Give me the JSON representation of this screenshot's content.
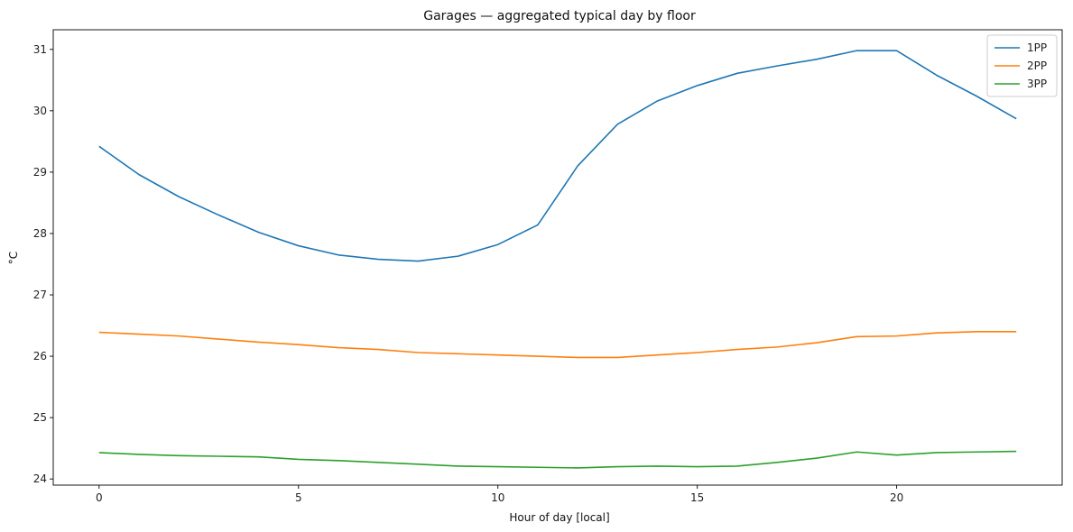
{
  "chart_data": {
    "type": "line",
    "title": "Garages — aggregated typical day by floor",
    "xlabel": "Hour of day [local]",
    "ylabel": "°C",
    "xlim": [
      -1.15,
      24.15
    ],
    "ylim": [
      23.9,
      31.32
    ],
    "xticks": [
      0,
      5,
      10,
      15,
      20
    ],
    "yticks": [
      24,
      25,
      26,
      27,
      28,
      29,
      30,
      31
    ],
    "grid": false,
    "legend_position": "top-right",
    "x": [
      0,
      1,
      2,
      3,
      4,
      5,
      6,
      7,
      8,
      9,
      10,
      11,
      12,
      13,
      14,
      15,
      16,
      17,
      18,
      19,
      20,
      21,
      22,
      23
    ],
    "series": [
      {
        "name": "1PP",
        "color": "#1f77b4",
        "values": [
          29.42,
          28.96,
          28.6,
          28.3,
          28.02,
          27.8,
          27.65,
          27.58,
          27.55,
          27.63,
          27.82,
          28.14,
          29.1,
          29.78,
          30.16,
          30.41,
          30.61,
          30.73,
          30.84,
          30.98,
          30.98,
          30.58,
          30.24,
          29.87
        ]
      },
      {
        "name": "2PP",
        "color": "#ff7f0e",
        "values": [
          26.39,
          26.36,
          26.33,
          26.28,
          26.23,
          26.19,
          26.14,
          26.11,
          26.06,
          26.04,
          26.02,
          26.0,
          25.98,
          25.98,
          26.02,
          26.06,
          26.11,
          26.15,
          26.22,
          26.32,
          26.33,
          26.38,
          26.4,
          26.4
        ]
      },
      {
        "name": "3PP",
        "color": "#2ca02c",
        "values": [
          24.43,
          24.4,
          24.38,
          24.37,
          24.36,
          24.32,
          24.3,
          24.27,
          24.24,
          24.21,
          24.2,
          24.19,
          24.18,
          24.2,
          24.21,
          24.2,
          24.21,
          24.27,
          24.34,
          24.44,
          24.39,
          24.43,
          24.44,
          24.45
        ]
      }
    ]
  }
}
